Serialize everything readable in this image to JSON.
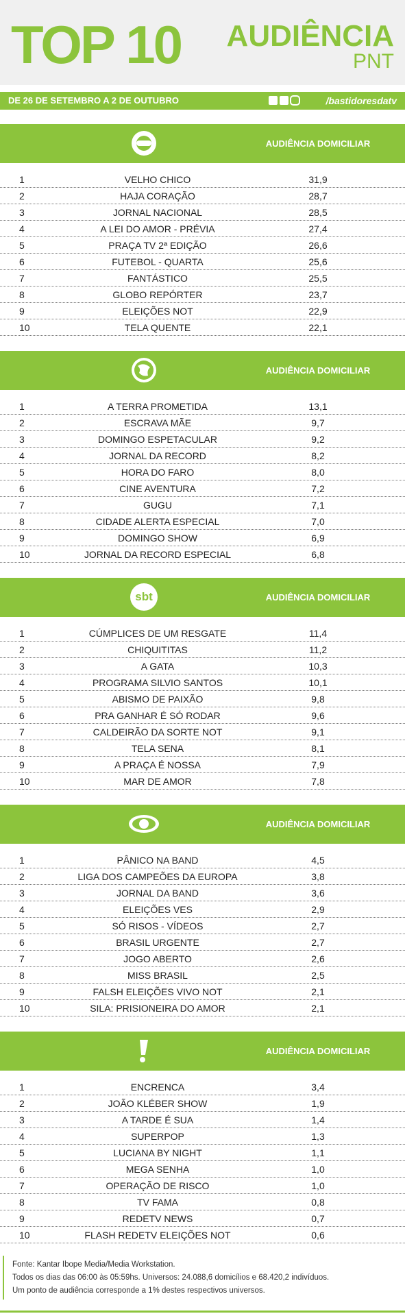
{
  "header": {
    "title": "TOP 10",
    "brand": "AUDIÊNCIA",
    "brand_sub": "PNT",
    "period": "DE 26 DE SETEMBRO A 2 DE OUTUBRO",
    "social": "/bastidoresdatv"
  },
  "sections": [
    {
      "heading": "AUDIÊNCIA DOMICILIAR",
      "rows": [
        [
          "1",
          "VELHO CHICO",
          "31,9"
        ],
        [
          "2",
          "HAJA CORAÇÃO",
          "28,7"
        ],
        [
          "3",
          "JORNAL NACIONAL",
          "28,5"
        ],
        [
          "4",
          "A LEI DO AMOR - PRÉVIA",
          "27,4"
        ],
        [
          "5",
          "PRAÇA TV 2ª EDIÇÃO",
          "26,6"
        ],
        [
          "6",
          "FUTEBOL - QUARTA",
          "25,6"
        ],
        [
          "7",
          "FANTÁSTICO",
          "25,5"
        ],
        [
          "8",
          "GLOBO REPÓRTER",
          "23,7"
        ],
        [
          "9",
          "ELEIÇÕES NOT",
          "22,9"
        ],
        [
          "10",
          "TELA QUENTE",
          "22,1"
        ]
      ]
    },
    {
      "heading": "AUDIÊNCIA DOMICILIAR",
      "rows": [
        [
          "1",
          "A TERRA PROMETIDA",
          "13,1"
        ],
        [
          "2",
          "ESCRAVA MÃE",
          "9,7"
        ],
        [
          "3",
          "DOMINGO ESPETACULAR",
          "9,2"
        ],
        [
          "4",
          "JORNAL DA RECORD",
          "8,2"
        ],
        [
          "5",
          "HORA DO FARO",
          "8,0"
        ],
        [
          "6",
          "CINE AVENTURA",
          "7,2"
        ],
        [
          "7",
          "GUGU",
          "7,1"
        ],
        [
          "8",
          "CIDADE ALERTA ESPECIAL",
          "7,0"
        ],
        [
          "9",
          "DOMINGO SHOW",
          "6,9"
        ],
        [
          "10",
          "JORNAL DA RECORD ESPECIAL",
          "6,8"
        ]
      ]
    },
    {
      "heading": "AUDIÊNCIA DOMICILIAR",
      "logo_text": "sbt",
      "rows": [
        [
          "1",
          "CÚMPLICES DE UM RESGATE",
          "11,4"
        ],
        [
          "2",
          "CHIQUITITAS",
          "11,2"
        ],
        [
          "3",
          "A GATA",
          "10,3"
        ],
        [
          "4",
          "PROGRAMA SILVIO SANTOS",
          "10,1"
        ],
        [
          "5",
          "ABISMO DE PAIXÃO",
          "9,8"
        ],
        [
          "6",
          "PRA GANHAR É SÓ RODAR",
          "9,6"
        ],
        [
          "7",
          "CALDEIRÃO DA SORTE NOT",
          "9,1"
        ],
        [
          "8",
          "TELA SENA",
          "8,1"
        ],
        [
          "9",
          "A PRAÇA É NOSSA",
          "7,9"
        ],
        [
          "10",
          "MAR DE AMOR",
          "7,8"
        ]
      ]
    },
    {
      "heading": "AUDIÊNCIA DOMICILIAR",
      "rows": [
        [
          "1",
          "PÂNICO NA BAND",
          "4,5"
        ],
        [
          "2",
          "LIGA DOS CAMPEÕES DA EUROPA",
          "3,8"
        ],
        [
          "3",
          "JORNAL DA BAND",
          "3,6"
        ],
        [
          "4",
          "ELEIÇÕES VES",
          "2,9"
        ],
        [
          "5",
          "SÓ RISOS - VÍDEOS",
          "2,7"
        ],
        [
          "6",
          "BRASIL URGENTE",
          "2,7"
        ],
        [
          "7",
          "JOGO ABERTO",
          "2,6"
        ],
        [
          "8",
          "MISS BRASIL",
          "2,5"
        ],
        [
          "9",
          "FALSH ELEIÇÕES VIVO NOT",
          "2,1"
        ],
        [
          "10",
          "SILA: PRISIONEIRA DO AMOR",
          "2,1"
        ]
      ]
    },
    {
      "heading": "AUDIÊNCIA DOMICILIAR",
      "rows": [
        [
          "1",
          "ENCRENCA",
          "3,4"
        ],
        [
          "2",
          "JOÃO KLÉBER SHOW",
          "1,9"
        ],
        [
          "3",
          "A TARDE É SUA",
          "1,4"
        ],
        [
          "4",
          "SUPERPOP",
          "1,3"
        ],
        [
          "5",
          "LUCIANA BY NIGHT",
          "1,1"
        ],
        [
          "6",
          "MEGA SENHA",
          "1,0"
        ],
        [
          "7",
          "OPERAÇÃO DE RISCO",
          "1,0"
        ],
        [
          "8",
          "TV FAMA",
          "0,8"
        ],
        [
          "9",
          "REDETV NEWS",
          "0,7"
        ],
        [
          "10",
          "FLASH REDETV ELEIÇÕES NOT",
          "0,6"
        ]
      ]
    }
  ],
  "footer": [
    "Fonte: Kantar Ibope Media/Media Workstation.",
    "Todos os dias das 06:00 às 05:59hs. Universos: 24.088,6 domicílios e 68.420,2 indivíduos.",
    "Um ponto de audiência corresponde a 1% destes respectivos universos."
  ]
}
